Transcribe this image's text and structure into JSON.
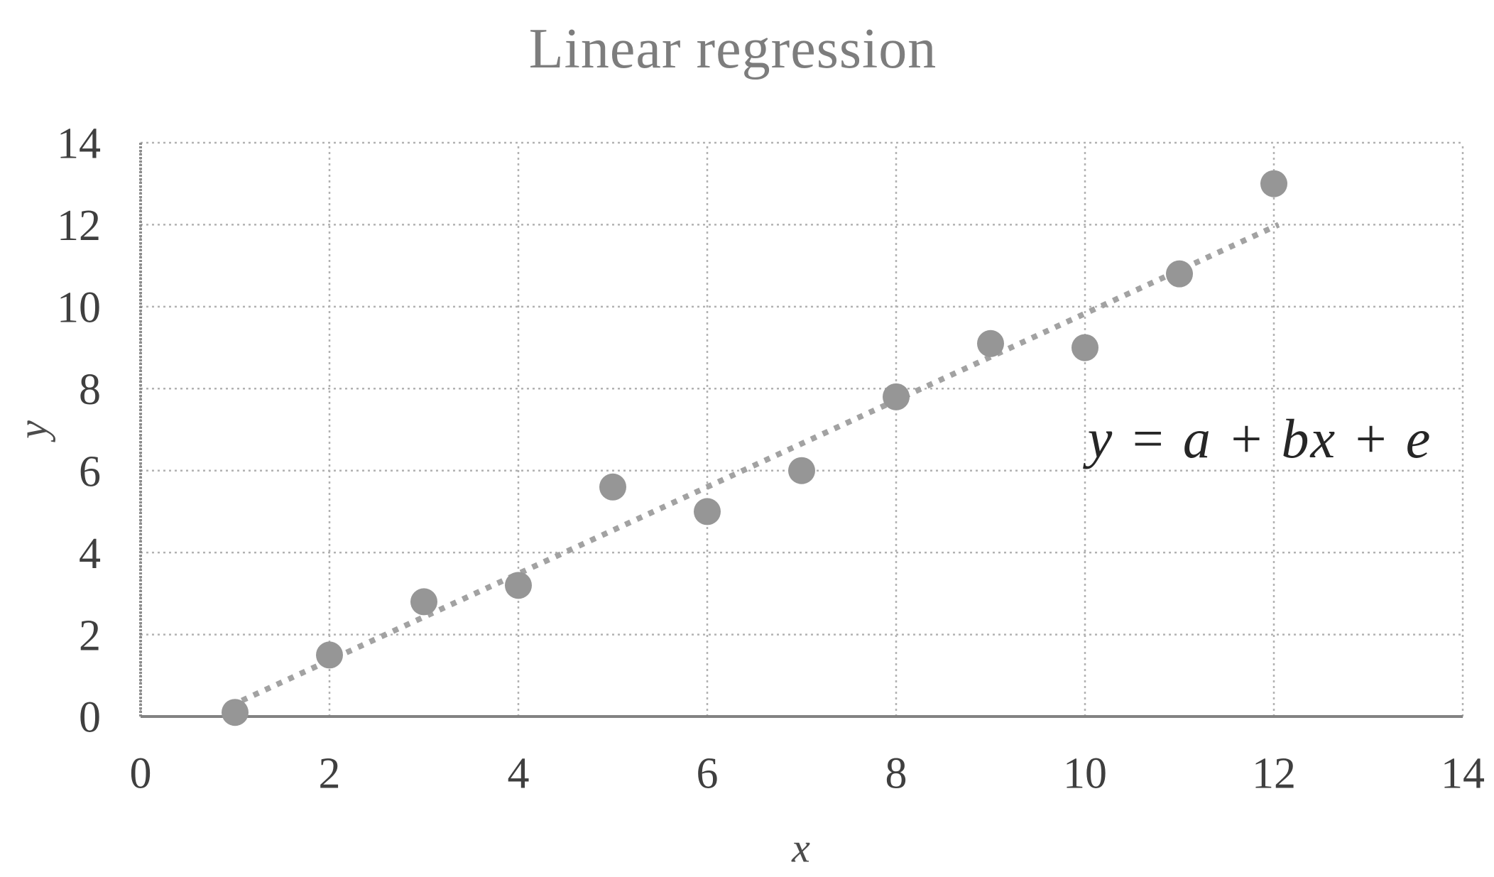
{
  "chart_data": {
    "type": "scatter",
    "title": "Linear regression",
    "xlabel": "x",
    "ylabel": "y",
    "xlim": [
      0,
      14
    ],
    "ylim": [
      0,
      14
    ],
    "x_ticks": [
      0,
      2,
      4,
      6,
      8,
      10,
      12,
      14
    ],
    "y_ticks": [
      0,
      2,
      4,
      6,
      8,
      10,
      12,
      14
    ],
    "grid": true,
    "legend": "none",
    "series": [
      {
        "name": "observations",
        "type": "scatter",
        "points": [
          [
            1,
            0.1
          ],
          [
            2,
            1.5
          ],
          [
            3,
            2.8
          ],
          [
            4,
            3.2
          ],
          [
            5,
            5.6
          ],
          [
            6,
            5.0
          ],
          [
            7,
            6.0
          ],
          [
            8,
            7.8
          ],
          [
            9,
            9.1
          ],
          [
            10,
            9.0
          ],
          [
            11,
            10.8
          ],
          [
            12,
            13.0
          ]
        ]
      },
      {
        "name": "trendline",
        "type": "line",
        "style": "dotted",
        "points": [
          [
            0.95,
            0.26
          ],
          [
            12.05,
            12.0
          ]
        ]
      }
    ],
    "annotation": {
      "text": "y = a + bx + e",
      "x": 11.85,
      "y": 6.8
    }
  },
  "colors": {
    "background": "#ffffff",
    "grid": "#b2b2b2",
    "axis_line": "#828282",
    "left_axis_line": "#8c8c8c",
    "point": "#969696",
    "trend": "#a2a2a2",
    "title": "#7d7d7d",
    "tick_label": "#3f3f3f",
    "axis_title": "#4c4c4c",
    "annotation": "#262626"
  }
}
